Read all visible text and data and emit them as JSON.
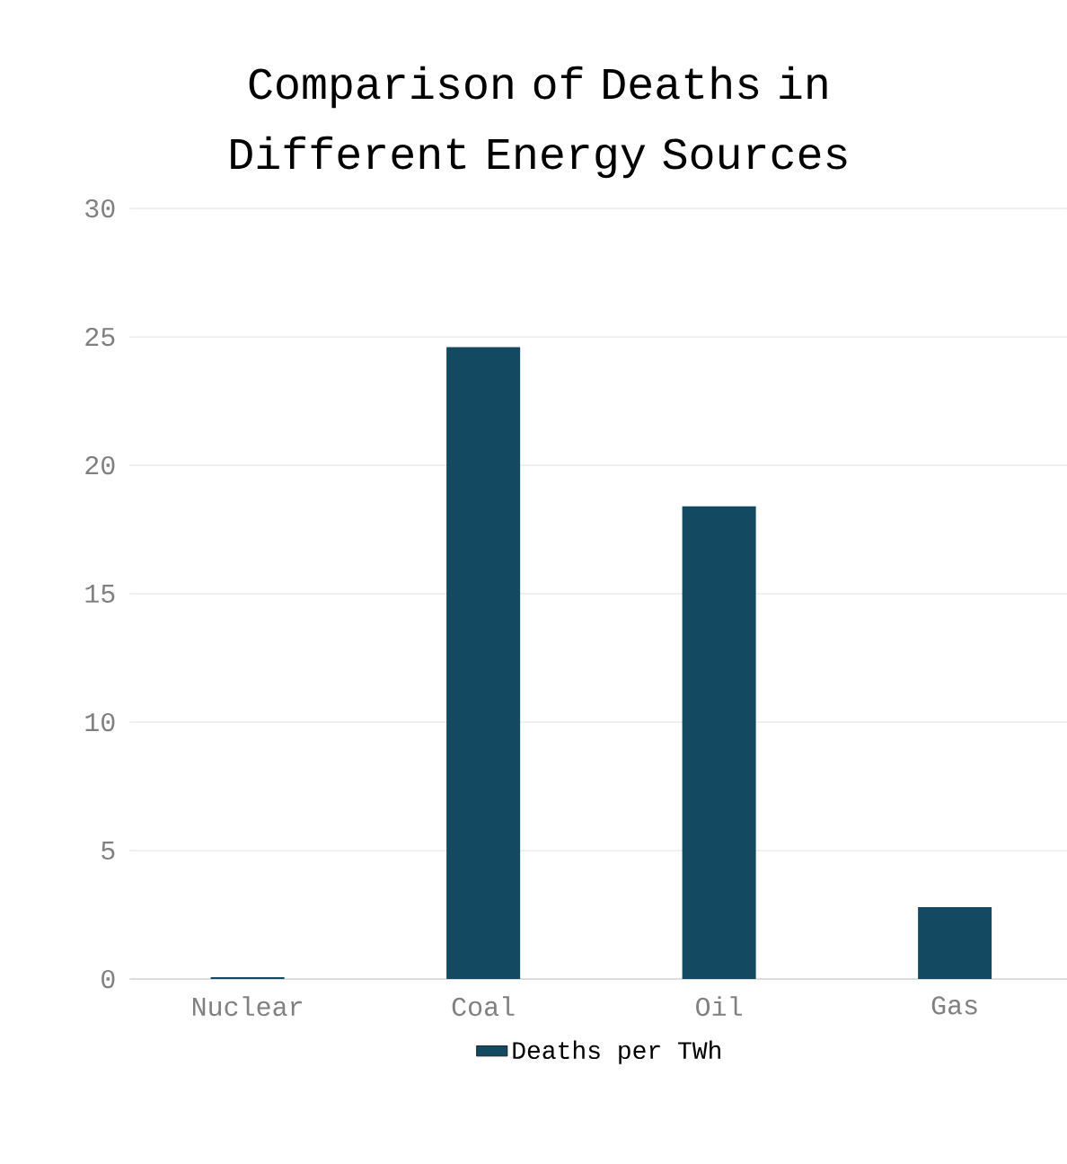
{
  "chart_data": {
    "type": "bar",
    "title": "Comparison of Deaths in Different Energy Sources",
    "categories": [
      "Nuclear",
      "Coal",
      "Oil",
      "Gas"
    ],
    "series": [
      {
        "name": "Deaths per TWh",
        "color": "#134a62",
        "values": [
          0.07,
          24.6,
          18.4,
          2.8
        ]
      }
    ],
    "ylim": [
      0,
      30
    ],
    "yticks": [
      0,
      5,
      10,
      15,
      20,
      25,
      30
    ],
    "grid": "y",
    "legend": "bottom"
  }
}
